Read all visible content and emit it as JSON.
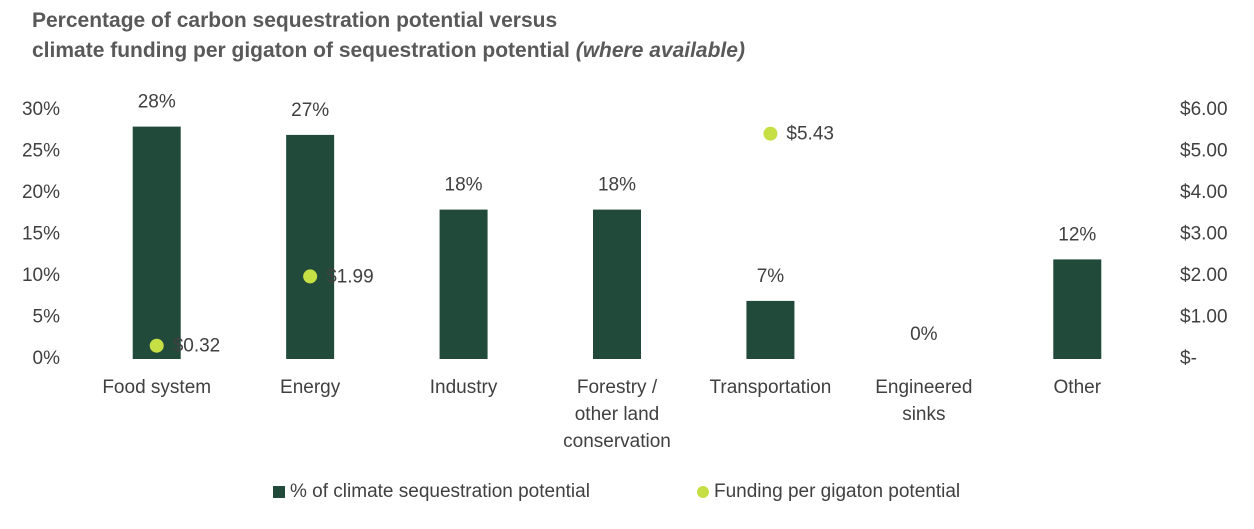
{
  "chart_data": {
    "type": "combo",
    "title": [
      "Percentage of carbon sequestration potential versus",
      "climate funding per gigaton of sequestration potential"
    ],
    "title_note": "(where available)",
    "categories": [
      [
        "Food system"
      ],
      [
        "Energy"
      ],
      [
        "Industry"
      ],
      [
        "Forestry /",
        "other land",
        "conservation"
      ],
      [
        "Transportation"
      ],
      [
        "Engineered",
        "sinks"
      ],
      [
        "Other"
      ]
    ],
    "series": [
      {
        "name": "% of climate sequestration potential",
        "type": "bar",
        "color": "#214a3b",
        "values": [
          28,
          27,
          18,
          18,
          7,
          0,
          12
        ],
        "value_labels": [
          "28%",
          "27%",
          "18%",
          "18%",
          "7%",
          "0%",
          "12%"
        ]
      },
      {
        "name": "Funding per gigaton potential",
        "type": "scatter",
        "color": "#c6df45",
        "axis": "y2",
        "values": [
          0.32,
          1.99,
          null,
          null,
          5.43,
          null,
          null
        ],
        "value_labels": [
          "$0.32",
          "$1.99",
          null,
          null,
          "$5.43",
          null,
          null
        ]
      }
    ],
    "ylim": [
      0,
      30
    ],
    "yticks": [
      {
        "value": 0,
        "label": "0%"
      },
      {
        "value": 5,
        "label": "5%"
      },
      {
        "value": 10,
        "label": "10%"
      },
      {
        "value": 15,
        "label": "15%"
      },
      {
        "value": 20,
        "label": "20%"
      },
      {
        "value": 25,
        "label": "25%"
      },
      {
        "value": 30,
        "label": "30%"
      }
    ],
    "y2lim": [
      0,
      6
    ],
    "y2ticks": [
      {
        "value": 0,
        "label": "$-"
      },
      {
        "value": 1,
        "label": "$1.00"
      },
      {
        "value": 2,
        "label": "$2.00"
      },
      {
        "value": 3,
        "label": "$3.00"
      },
      {
        "value": 4,
        "label": "$4.00"
      },
      {
        "value": 5,
        "label": "$5.00"
      },
      {
        "value": 6,
        "label": "$6.00"
      }
    ],
    "grid": false,
    "legend": "bottom"
  }
}
